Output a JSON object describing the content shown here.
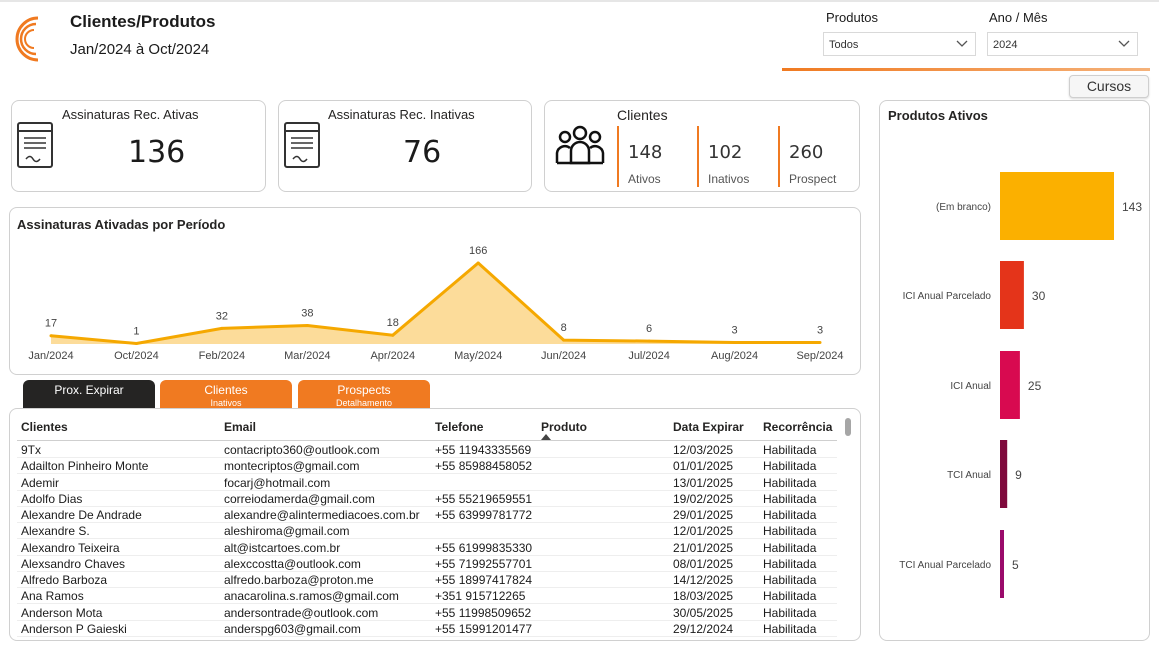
{
  "header": {
    "title": "Clientes/Produtos",
    "period": "Jan/2024 à Oct/2024",
    "accent": "#f07a21"
  },
  "filters": {
    "produtos": {
      "label": "Produtos",
      "value": "Todos"
    },
    "ano_mes": {
      "label": "Ano / Mês",
      "value": "2024"
    },
    "cursos_button": "Cursos"
  },
  "kpis": {
    "ativas": {
      "label": "Assinaturas Rec. Ativas",
      "value": "136",
      "icon": "document-icon"
    },
    "inativas": {
      "label": "Assinaturas Rec. Inativas",
      "value": "76",
      "icon": "document-icon"
    },
    "clientes": {
      "label": "Clientes",
      "icon": "users-icon",
      "items": [
        {
          "value": "148",
          "label": "Ativos"
        },
        {
          "value": "102",
          "label": "Inativos"
        },
        {
          "value": "260",
          "label": "Prospect"
        }
      ]
    }
  },
  "chart_data": [
    {
      "type": "area",
      "title": "Assinaturas Ativadas por Período",
      "categories": [
        "Jan/2024",
        "Oct/2024",
        "Feb/2024",
        "Mar/2024",
        "Apr/2024",
        "May/2024",
        "Jun/2024",
        "Jul/2024",
        "Aug/2024",
        "Sep/2024"
      ],
      "values": [
        17,
        1,
        32,
        38,
        18,
        166,
        8,
        6,
        3,
        3
      ],
      "line_color": "#f5a800",
      "fill_color": "#fcdc9a",
      "grid": false
    },
    {
      "type": "bar",
      "orientation": "horizontal",
      "title": "Produtos Ativos",
      "categories": [
        "(Em branco)",
        "ICI Anual Parcelado",
        "ICI Anual",
        "TCI Anual",
        "TCI Anual Parcelado"
      ],
      "values": [
        143,
        30,
        25,
        9,
        5
      ],
      "colors": [
        "#fbb000",
        "#e4341a",
        "#d80a50",
        "#7f0a3c",
        "#9a0a6b"
      ]
    }
  ],
  "tabs": [
    {
      "label": "Prox. Expirar",
      "sub": "",
      "color": "#252423",
      "active": true
    },
    {
      "label": "Clientes",
      "sub": "Inativos",
      "color": "#f07a21",
      "active": false
    },
    {
      "label": "Prospects",
      "sub": "Detalhamento",
      "color": "#f07a21",
      "active": false
    }
  ],
  "table": {
    "columns": [
      "Clientes",
      "Email",
      "Telefone",
      "Produto",
      "Data Expirar",
      "Recorrência"
    ],
    "rows": [
      [
        "9Tx",
        "contacripto360@outlook.com",
        "+55 11943335569",
        "",
        "12/03/2025",
        "Habilitada"
      ],
      [
        "Adailton Pinheiro Monte",
        "montecriptos@gmail.com",
        "+55 85988458052",
        "",
        "01/01/2025",
        "Habilitada"
      ],
      [
        "Ademir",
        "focarj@hotmail.com",
        "",
        "",
        "13/01/2025",
        "Habilitada"
      ],
      [
        "Adolfo Dias",
        "correiodamerda@gmail.com",
        "+55 55219659551",
        "",
        "19/02/2025",
        "Habilitada"
      ],
      [
        "Alexandre De Andrade",
        "alexandre@alintermediacoes.com.br",
        "+55 63999781772",
        "",
        "29/01/2025",
        "Habilitada"
      ],
      [
        "Alexandre S.",
        "aleshiroma@gmail.com",
        "",
        "",
        "12/01/2025",
        "Habilitada"
      ],
      [
        "Alexandro Teixeira",
        "alt@istcartoes.com.br",
        "+55 61999835330",
        "",
        "21/01/2025",
        "Habilitada"
      ],
      [
        "Alexsandro Chaves",
        "alexccostta@outlook.com",
        "+55 71992557701",
        "",
        "08/01/2025",
        "Habilitada"
      ],
      [
        "Alfredo Barboza",
        "alfredo.barboza@proton.me",
        "+55 18997417824",
        "",
        "14/12/2025",
        "Habilitada"
      ],
      [
        "Ana Ramos",
        "anacarolina.s.ramos@gmail.com",
        "+351 915712265",
        "",
        "18/03/2025",
        "Habilitada"
      ],
      [
        "Anderson Mota",
        "andersontrade@outlook.com",
        "+55 11998509652",
        "",
        "30/05/2025",
        "Habilitada"
      ],
      [
        "Anderson P Gaieski",
        "anderspg603@gmail.com",
        "+55 15991201477",
        "",
        "29/12/2024",
        "Habilitada"
      ]
    ]
  }
}
